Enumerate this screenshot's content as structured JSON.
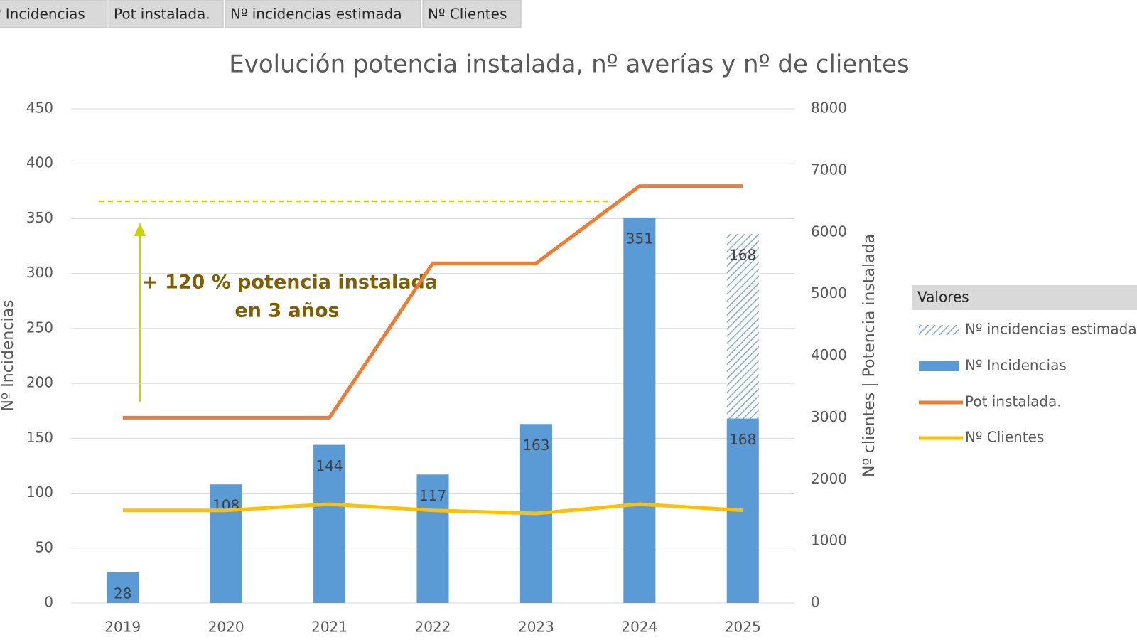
{
  "field_buttons": [
    "Nº Incidencias",
    "Pot instalada.",
    "Nº incidencias estimada",
    "Nº Clientes"
  ],
  "chart_data": {
    "type": "bar",
    "title": "Evolución potencia instalada, nº averías y nº de clientes",
    "y_label": "Nº Incidencias",
    "y2_label": "Nº clientes | Potencia instalada",
    "annotation": [
      "+ 120 % potencia instalada",
      "en 3 años"
    ],
    "legend_title": "Valores",
    "legend": "right",
    "grid": true,
    "categories": [
      "2019",
      "2020",
      "2021",
      "2022",
      "2023",
      "2024",
      "2025"
    ],
    "ylim": [
      0,
      450
    ],
    "yticks": [
      0,
      50,
      100,
      150,
      200,
      250,
      300,
      350,
      400,
      450
    ],
    "y2lim": [
      0,
      8000
    ],
    "y2ticks": [
      0,
      1000,
      2000,
      3000,
      4000,
      5000,
      6000,
      7000,
      8000
    ],
    "series": [
      {
        "name": "Nº incidencias estimada",
        "type": "bar",
        "pattern": "diagonal-stripes",
        "color": "#7fa9d6",
        "values": [
          null,
          null,
          null,
          null,
          null,
          null,
          168
        ]
      },
      {
        "name": "Nº Incidencias",
        "type": "bar",
        "color": "#5b9bd5",
        "values": [
          28,
          108,
          144,
          117,
          163,
          351,
          168
        ]
      },
      {
        "name": "Pot instalada.",
        "type": "line",
        "axis": "y2",
        "color": "#ed7d31",
        "values": [
          3000,
          3000,
          3000,
          5500,
          5500,
          6750,
          6750
        ]
      },
      {
        "name": "Nº Clientes",
        "type": "line",
        "axis": "y2",
        "color": "#ffc000",
        "values": [
          1500,
          1500,
          1600,
          1500,
          1450,
          1600,
          1500
        ]
      }
    ]
  }
}
